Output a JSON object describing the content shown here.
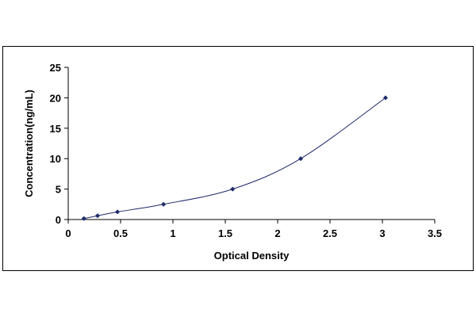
{
  "chart_data": {
    "type": "scatter",
    "title": "",
    "xlabel": "Optical Density",
    "ylabel": "Concentration(ng/mL)",
    "xlim": [
      0,
      3.5
    ],
    "ylim": [
      0,
      25
    ],
    "x_ticks": [
      0,
      0.5,
      1,
      1.5,
      2,
      2.5,
      3,
      3.5
    ],
    "x_tick_labels": [
      "0",
      "0.5",
      "1",
      "1.5",
      "2",
      "2.5",
      "3",
      "3.5"
    ],
    "y_ticks": [
      0,
      5,
      10,
      15,
      20,
      25
    ],
    "y_tick_labels": [
      "0",
      "5",
      "10",
      "15",
      "20",
      "25"
    ],
    "grid": false,
    "legend": "none",
    "series": [
      {
        "x": [
          0.15,
          0.28,
          0.47,
          0.91,
          1.57,
          2.22,
          3.03
        ],
        "y": [
          0.16,
          0.62,
          1.25,
          2.5,
          5,
          10,
          20
        ]
      }
    ],
    "fit_curve": true,
    "colors": {
      "marker": "#1f2a6b",
      "line": "#1f2a6b",
      "axis": "#000000"
    }
  }
}
